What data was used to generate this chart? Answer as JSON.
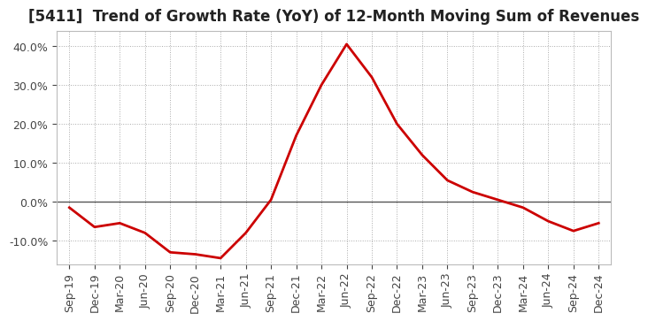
{
  "title": "[5411]  Trend of Growth Rate (YoY) of 12-Month Moving Sum of Revenues",
  "x_labels": [
    "Sep-19",
    "Dec-19",
    "Mar-20",
    "Jun-20",
    "Sep-20",
    "Dec-20",
    "Mar-21",
    "Jun-21",
    "Sep-21",
    "Dec-21",
    "Mar-22",
    "Jun-22",
    "Sep-22",
    "Dec-22",
    "Mar-23",
    "Jun-23",
    "Sep-23",
    "Dec-23",
    "Mar-24",
    "Jun-24",
    "Sep-24",
    "Dec-24"
  ],
  "y_values": [
    -1.5,
    -6.5,
    -5.5,
    -8.0,
    -13.0,
    -13.5,
    -14.5,
    -8.0,
    0.5,
    17.0,
    30.0,
    40.5,
    32.0,
    20.0,
    12.0,
    5.5,
    2.5,
    0.5,
    -1.5,
    -5.0,
    -7.5,
    -5.5
  ],
  "line_color": "#cc0000",
  "line_width": 2.0,
  "background_color": "#ffffff",
  "plot_bg_color": "#ffffff",
  "grid_color": "#aaaaaa",
  "zero_line_color": "#555555",
  "yticks": [
    -10.0,
    0.0,
    10.0,
    20.0,
    30.0,
    40.0
  ],
  "ylim": [
    -16,
    44
  ],
  "title_fontsize": 12,
  "tick_fontsize": 9,
  "ylabel_color": "#444444"
}
